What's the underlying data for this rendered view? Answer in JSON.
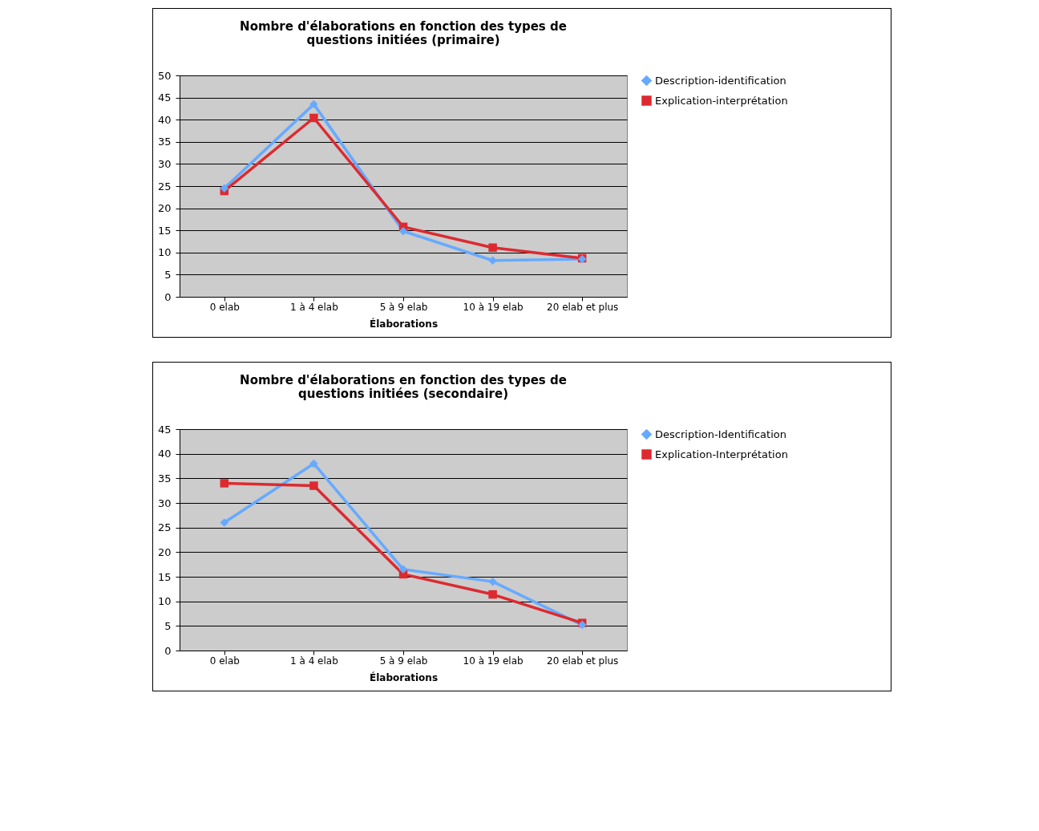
{
  "chart_data": [
    {
      "type": "line",
      "title": "Nombre d'élaborations en fonction des types de questions initiées (primaire)",
      "xlabel": "Élaborations",
      "categories": [
        "0 elab",
        "1 à 4 elab",
        "5 à 9 elab",
        "10 à 19 elab",
        "20 elab et plus"
      ],
      "series": [
        {
          "name": "Description-identification",
          "color": "#66aaff",
          "marker": "diamond",
          "values": [
            24.5,
            43.5,
            14.8,
            8.2,
            8.5
          ]
        },
        {
          "name": "Explication-interprétation",
          "color": "#dd2a30",
          "marker": "square",
          "values": [
            23.9,
            40.4,
            15.8,
            11.1,
            8.7
          ]
        }
      ],
      "ylim": [
        0,
        50
      ],
      "yticks": [
        0,
        5,
        10,
        15,
        20,
        25,
        30,
        35,
        40,
        45,
        50
      ],
      "grid": "y",
      "legend": "right"
    },
    {
      "type": "line",
      "title": "Nombre d'élaborations en fonction des types de questions initiées (secondaire)",
      "xlabel": "Élaborations",
      "categories": [
        "0 elab",
        "1 à 4 elab",
        "5 à 9 elab",
        "10 à 19 elab",
        "20 elab et plus"
      ],
      "series": [
        {
          "name": "Description-Identification",
          "color": "#66aaff",
          "marker": "diamond",
          "values": [
            26,
            38,
            16.5,
            14,
            5.2
          ]
        },
        {
          "name": "Explication-Interprétation",
          "color": "#dd2a30",
          "marker": "square",
          "values": [
            34,
            33.5,
            15.5,
            11.4,
            5.6
          ]
        }
      ],
      "ylim": [
        0,
        45
      ],
      "yticks": [
        0,
        5,
        10,
        15,
        20,
        25,
        30,
        35,
        40,
        45
      ],
      "grid": "y",
      "legend": "right"
    }
  ]
}
